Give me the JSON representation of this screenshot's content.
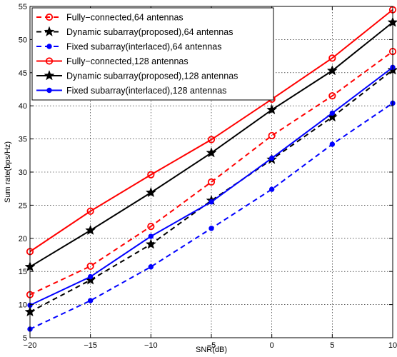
{
  "chart_data": {
    "type": "line",
    "xlabel": "SNR(dB)",
    "ylabel": "Sum rate(bps/Hz)",
    "xlim": [
      -20,
      10
    ],
    "ylim": [
      5,
      55
    ],
    "x_ticks": [
      "−20",
      "−15",
      "−10",
      "−5",
      "0",
      "5",
      "10"
    ],
    "y_ticks": [
      "5",
      "10",
      "15",
      "20",
      "25",
      "30",
      "35",
      "40",
      "45",
      "50",
      "55"
    ],
    "grid": true,
    "legend_position": "top-left",
    "x": [
      -20,
      -15,
      -10,
      -5,
      0,
      5,
      10
    ],
    "series": [
      {
        "name": "Fully−connected,64 antennas",
        "color": "#ff0000",
        "dash": "dashed",
        "marker": "circle",
        "values": [
          11.5,
          15.8,
          21.8,
          28.5,
          35.5,
          41.5,
          48.2
        ]
      },
      {
        "name": "Dynamic subarray(proposed),64 antennas",
        "color": "#000000",
        "dash": "dashed",
        "marker": "star",
        "values": [
          8.9,
          13.7,
          19.1,
          25.7,
          31.9,
          38.3,
          45.4
        ]
      },
      {
        "name": "Fixed subarray(interlaced),64 antennas",
        "color": "#0000ff",
        "dash": "dashed",
        "marker": "dot",
        "values": [
          6.3,
          10.6,
          15.7,
          21.5,
          27.4,
          34.2,
          40.4
        ]
      },
      {
        "name": "Fully−connected,128 antennas",
        "color": "#ff0000",
        "dash": "solid",
        "marker": "circle",
        "values": [
          18.0,
          24.1,
          29.6,
          34.9,
          41.0,
          47.2,
          54.5
        ]
      },
      {
        "name": "Dynamic subarray(proposed),128 antennas",
        "color": "#000000",
        "dash": "solid",
        "marker": "star",
        "values": [
          15.7,
          21.2,
          26.9,
          32.9,
          39.4,
          45.3,
          52.6
        ]
      },
      {
        "name": "Fixed subarray(interlaced),128 antennas",
        "color": "#0000ff",
        "dash": "solid",
        "marker": "dot",
        "values": [
          9.9,
          14.2,
          20.3,
          25.5,
          32.1,
          38.9,
          45.8
        ]
      }
    ]
  }
}
